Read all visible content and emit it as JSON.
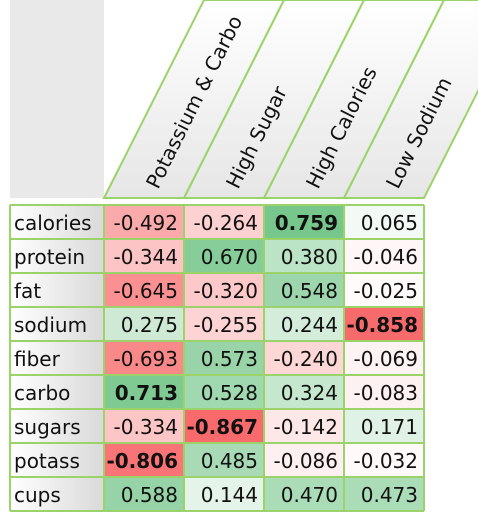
{
  "chart_data": {
    "type": "heatmap",
    "title": "",
    "columns": [
      "Potassium & Carbo",
      "High Sugar",
      "High Calories",
      "Low Sodium"
    ],
    "rows": [
      "calories",
      "protein",
      "fat",
      "sodium",
      "fiber",
      "carbo",
      "sugars",
      "potass",
      "cups"
    ],
    "value_labels": [
      [
        "-0.492",
        "-0.264",
        "0.759",
        "0.065"
      ],
      [
        "-0.344",
        "0.670",
        "0.380",
        "-0.046"
      ],
      [
        "-0.645",
        "-0.320",
        "0.548",
        "-0.025"
      ],
      [
        "0.275",
        "-0.255",
        "0.244",
        "-0.858"
      ],
      [
        "-0.693",
        "0.573",
        "-0.240",
        "-0.069"
      ],
      [
        "0.713",
        "0.528",
        "0.324",
        "-0.083"
      ],
      [
        "-0.334",
        "-0.867",
        "-0.142",
        "0.171"
      ],
      [
        "-0.806",
        "0.485",
        "-0.086",
        "-0.032"
      ],
      [
        "0.588",
        "0.144",
        "0.470",
        "0.473"
      ]
    ],
    "values": [
      [
        -0.492,
        -0.264,
        0.759,
        0.065
      ],
      [
        -0.344,
        0.67,
        0.38,
        -0.046
      ],
      [
        -0.645,
        -0.32,
        0.548,
        -0.025
      ],
      [
        0.275,
        -0.255,
        0.244,
        -0.858
      ],
      [
        -0.693,
        0.573,
        -0.24,
        -0.069
      ],
      [
        0.713,
        0.528,
        0.324,
        -0.083
      ],
      [
        -0.334,
        -0.867,
        -0.142,
        0.171
      ],
      [
        -0.806,
        0.485,
        -0.086,
        -0.032
      ],
      [
        0.588,
        0.144,
        0.47,
        0.473
      ]
    ],
    "bold_cells": [
      [
        0,
        2
      ],
      [
        3,
        3
      ],
      [
        5,
        0
      ],
      [
        6,
        1
      ],
      [
        7,
        0
      ]
    ],
    "colors": {
      "positive": "#63be7b",
      "negative": "#f8696b",
      "neutral": "#ffffff",
      "grid_lines": "#9bd36a",
      "header_bg": "#e9e9e9"
    }
  }
}
